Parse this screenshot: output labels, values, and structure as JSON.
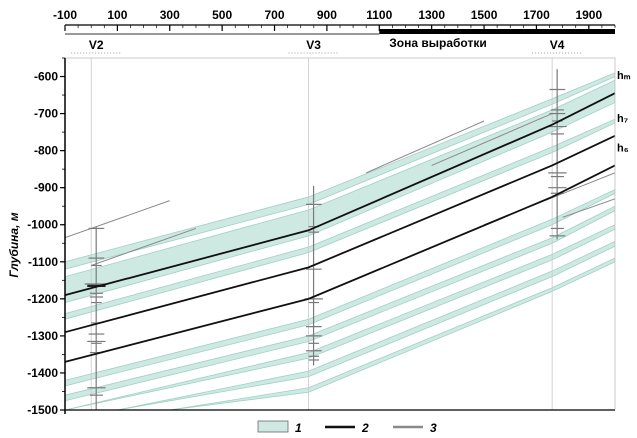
{
  "chart_data": {
    "type": "line",
    "ylabel": "Глубина, м",
    "x_ticks": [
      -100,
      100,
      300,
      500,
      700,
      900,
      1100,
      1300,
      1500,
      1700,
      1900
    ],
    "y_ticks": [
      -600,
      -700,
      -800,
      -900,
      -1000,
      -1100,
      -1200,
      -1300,
      -1400,
      -1500
    ],
    "xlim": [
      -100,
      2000
    ],
    "ylim": [
      -1500,
      -550
    ],
    "grid": false,
    "legend_position": "bottom",
    "zone": {
      "label": "Зона выработки",
      "x_start": 1100,
      "x_end": 2000
    },
    "wells": [
      {
        "name": "V2",
        "x": 0
      },
      {
        "name": "V3",
        "x": 830
      },
      {
        "name": "V4",
        "x": 1760
      }
    ],
    "series": [
      {
        "name": "hₘ",
        "label": "hₘ",
        "x": [
          -100,
          830,
          1760,
          2000
        ],
        "y": [
          -1190,
          -1015,
          -730,
          -645
        ]
      },
      {
        "name": "h₇",
        "label": "h₇",
        "x": [
          -100,
          830,
          1760,
          2000
        ],
        "y": [
          -1290,
          -1115,
          -840,
          -760
        ]
      },
      {
        "name": "h₆",
        "label": "h₆",
        "x": [
          -100,
          830,
          1760,
          2000
        ],
        "y": [
          -1370,
          -1200,
          -925,
          -840
        ]
      }
    ],
    "bands": [
      {
        "x": [
          -100,
          830,
          1760,
          2000
        ],
        "top": [
          -1140,
          -960,
          -690,
          -610
        ],
        "bottom": [
          -1210,
          -1030,
          -750,
          -670
        ]
      },
      {
        "x": [
          -100,
          830,
          1760,
          2000
        ],
        "top": [
          -1100,
          -925,
          -660,
          -590
        ],
        "bottom": [
          -1120,
          -945,
          -675,
          -600
        ]
      },
      {
        "x": [
          -100,
          830,
          1760,
          2000
        ],
        "top": [
          -1240,
          -1060,
          -790,
          -715
        ],
        "bottom": [
          -1255,
          -1075,
          -805,
          -725
        ]
      },
      {
        "x": [
          -100,
          830,
          1760,
          2000
        ],
        "top": [
          -1420,
          -1255,
          -985,
          -905
        ],
        "bottom": [
          -1435,
          -1270,
          -1000,
          -915
        ]
      },
      {
        "x": [
          -100,
          830,
          1760,
          2000
        ],
        "top": [
          -1460,
          -1300,
          -1035,
          -950
        ],
        "bottom": [
          -1475,
          -1315,
          -1050,
          -962
        ]
      },
      {
        "x": [
          -100,
          830,
          1760,
          2000
        ],
        "top": [
          -1500,
          -1345,
          -1080,
          -1000
        ],
        "bottom": [
          -1500,
          -1360,
          -1095,
          -1012
        ]
      },
      {
        "x": [
          100,
          830,
          1760,
          2000
        ],
        "top": [
          -1500,
          -1395,
          -1125,
          -1045
        ],
        "bottom": [
          -1500,
          -1410,
          -1140,
          -1058
        ]
      },
      {
        "x": [
          300,
          830,
          1760,
          2000
        ],
        "top": [
          -1500,
          -1440,
          -1170,
          -1090
        ],
        "bottom": [
          -1500,
          -1452,
          -1180,
          -1100
        ]
      }
    ],
    "thin_lines": [
      {
        "x": [
          -100,
          300
        ],
        "y": [
          -1035,
          -935
        ]
      },
      {
        "x": [
          0,
          400
        ],
        "y": [
          -1110,
          -1010
        ]
      },
      {
        "x": [
          1050,
          1500
        ],
        "y": [
          -860,
          -720
        ]
      },
      {
        "x": [
          1300,
          1760
        ],
        "y": [
          -840,
          -700
        ]
      },
      {
        "x": [
          1500,
          2000
        ],
        "y": [
          -1000,
          -860
        ]
      },
      {
        "x": [
          1800,
          2000
        ],
        "y": [
          -980,
          -930
        ]
      }
    ],
    "well_logs": [
      {
        "x": 0,
        "top": -1005,
        "bottom": -1500,
        "marks": [
          -1010,
          -1090,
          -1110,
          -1160,
          -1165,
          -1185,
          -1195,
          -1210,
          -1265,
          -1295,
          -1315,
          -1320,
          -1345,
          -1440,
          -1460
        ],
        "widths": [
          60,
          60,
          40,
          90,
          70,
          50,
          50,
          40,
          40,
          60,
          70,
          40,
          50,
          70,
          50
        ],
        "thick": [
          -1165
        ]
      },
      {
        "x": 830,
        "top": -895,
        "bottom": -1380,
        "marks": [
          -945,
          -1005,
          -1020,
          -1120,
          -1200,
          -1210,
          -1275,
          -1300,
          -1320,
          -1340,
          -1355,
          -1365
        ],
        "widths": [
          60,
          40,
          40,
          60,
          70,
          40,
          60,
          60,
          40,
          60,
          40,
          40
        ],
        "thick": []
      },
      {
        "x": 1760,
        "top": -580,
        "bottom": -1040,
        "marks": [
          -635,
          -690,
          -700,
          -720,
          -735,
          -755,
          -860,
          -870,
          -900,
          -915,
          -1010,
          -1030
        ],
        "widths": [
          60,
          50,
          60,
          40,
          70,
          50,
          70,
          50,
          70,
          50,
          50,
          60
        ],
        "thick": []
      }
    ],
    "legend": [
      {
        "key": "band",
        "label": "1"
      },
      {
        "key": "solid",
        "label": "2"
      },
      {
        "key": "gray",
        "label": "3"
      }
    ],
    "colors": {
      "band_fill": "#cde9e2",
      "band_stroke": "#9fd1c6",
      "horizon": "#111111",
      "log": "#7a7a7a",
      "axis": "#000000"
    }
  }
}
